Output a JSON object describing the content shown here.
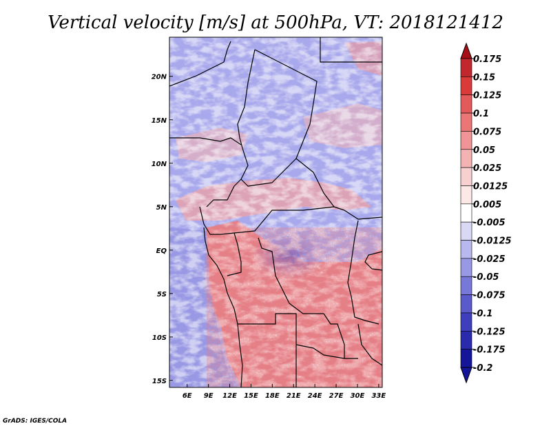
{
  "title": "Vertical velocity [m/s] at 500hPa, VT: 2018121412",
  "credit": "GrADS: IGES/COLA",
  "map": {
    "lon_labels": [
      "6E",
      "9E",
      "12E",
      "15E",
      "18E",
      "21E",
      "24E",
      "27E",
      "30E",
      "33E"
    ],
    "lon_values": [
      6,
      9,
      12,
      15,
      18,
      21,
      24,
      27,
      30,
      33
    ],
    "lat_labels": [
      "20N",
      "15N",
      "10N",
      "5N",
      "EQ",
      "5S",
      "10S",
      "15S"
    ],
    "lat_values": [
      20,
      15,
      10,
      5,
      0,
      -5,
      -10,
      -15
    ],
    "extent": {
      "lon_min": 3.5,
      "lon_max": 33.5,
      "lat_min": -15.8,
      "lat_max": 24.5
    }
  },
  "colorbar": {
    "levels": [
      "0.175",
      "0.15",
      "0.125",
      "0.1",
      "0.075",
      "0.05",
      "0.025",
      "0.0125",
      "0.005",
      "-0.005",
      "-0.0125",
      "-0.025",
      "-0.05",
      "-0.075",
      "-0.1",
      "-0.125",
      "-0.175",
      "-0.2"
    ],
    "colors": [
      "#a50f15",
      "#c0282d",
      "#d93b3b",
      "#e35a5a",
      "#ea7676",
      "#f09595",
      "#f4b3b3",
      "#f8d0d0",
      "#fde8e8",
      "#ffffff",
      "#d9d9f6",
      "#b8b8ee",
      "#9898e4",
      "#7878d8",
      "#5a5acb",
      "#3f3fbd",
      "#2a2aad",
      "#15159a"
    ]
  },
  "colors": {
    "updraft": "#e86a6a",
    "downdraft": "#8c8ce6",
    "neutral": "#ffffff",
    "border": "#000000"
  }
}
